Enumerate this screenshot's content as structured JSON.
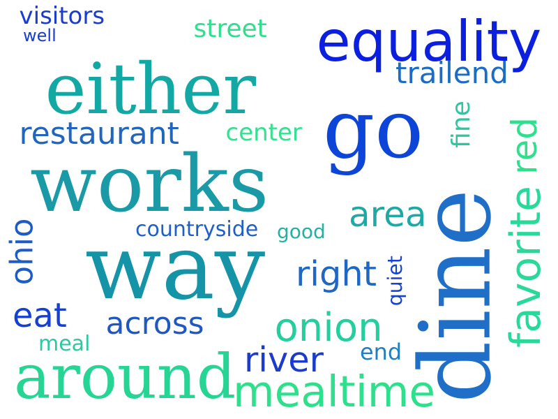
{
  "words": [
    {
      "id": "visitors",
      "text": "visitors",
      "color": "#1a3cd1"
    },
    {
      "id": "well",
      "text": "well",
      "color": "#1a3cd1"
    },
    {
      "id": "street",
      "text": "street",
      "color": "#2ee08c"
    },
    {
      "id": "equality",
      "text": "equality",
      "color": "#0b1fe0"
    },
    {
      "id": "either",
      "text": "either",
      "color": "#13a8a4"
    },
    {
      "id": "trailend",
      "text": "trailend",
      "color": "#1a6cc4"
    },
    {
      "id": "go",
      "text": "go",
      "color": "#0c45d8"
    },
    {
      "id": "restaurant",
      "text": "restaurant",
      "color": "#2066bf"
    },
    {
      "id": "center",
      "text": "center",
      "color": "#35e08e"
    },
    {
      "id": "fine",
      "text": "fine",
      "color": "#2ec69e"
    },
    {
      "id": "red",
      "text": "red",
      "color": "#2ee08c"
    },
    {
      "id": "favorite",
      "text": "favorite",
      "color": "#2ad99a"
    },
    {
      "id": "works",
      "text": "works",
      "color": "#1a9aa6"
    },
    {
      "id": "dine",
      "text": "dine",
      "color": "#1f6fc8"
    },
    {
      "id": "area",
      "text": "area",
      "color": "#1ea9a6"
    },
    {
      "id": "countryside",
      "text": "countryside",
      "color": "#1f5fc6"
    },
    {
      "id": "good",
      "text": "good",
      "color": "#22b2a3"
    },
    {
      "id": "ohio",
      "text": "ohio",
      "color": "#1d5bc7"
    },
    {
      "id": "way",
      "text": "way",
      "color": "#1594a8"
    },
    {
      "id": "right",
      "text": "right",
      "color": "#1f67c3"
    },
    {
      "id": "quiet",
      "text": "quiet",
      "color": "#1442d2"
    },
    {
      "id": "eat",
      "text": "eat",
      "color": "#1540d2"
    },
    {
      "id": "across",
      "text": "across",
      "color": "#2058c2"
    },
    {
      "id": "onion",
      "text": "onion",
      "color": "#24cf9e"
    },
    {
      "id": "meal",
      "text": "meal",
      "color": "#2dc8a2"
    },
    {
      "id": "river",
      "text": "river",
      "color": "#1a3bcc"
    },
    {
      "id": "end",
      "text": "end",
      "color": "#1f7fc2"
    },
    {
      "id": "around",
      "text": "around",
      "color": "#26d594"
    },
    {
      "id": "mealtime",
      "text": "mealtime",
      "color": "#2ee08c"
    }
  ]
}
